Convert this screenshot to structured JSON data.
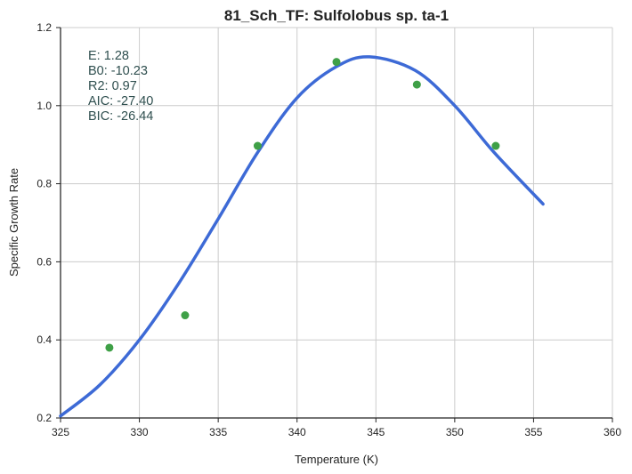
{
  "chart_data": {
    "type": "scatter",
    "title": "81_Sch_TF: Sulfolobus sp. ta-1",
    "xlabel": "Temperature (K)",
    "ylabel": "Specific Growth Rate",
    "xlim": [
      325,
      360
    ],
    "ylim": [
      0.2,
      1.2
    ],
    "xticks": [
      325,
      330,
      335,
      340,
      345,
      350,
      355,
      360
    ],
    "yticks": [
      0.2,
      0.4,
      0.6,
      0.8,
      1.0,
      1.2
    ],
    "xtick_labels": [
      "325",
      "330",
      "335",
      "340",
      "345",
      "350",
      "355",
      "360"
    ],
    "ytick_labels": [
      "0.2",
      "0.4",
      "0.6",
      "0.8",
      "1.0",
      "1.2"
    ],
    "grid": true,
    "series": [
      {
        "kind": "scatter",
        "color": "#3fa047",
        "x": [
          328.1,
          332.9,
          337.5,
          342.5,
          347.6,
          352.6
        ],
        "y": [
          0.38,
          0.463,
          0.897,
          1.112,
          1.054,
          0.897
        ]
      },
      {
        "kind": "line",
        "color": "#3d6ad6",
        "x": [
          325.0,
          327.5,
          330.0,
          332.5,
          335.0,
          337.5,
          340.0,
          342.5,
          344.6,
          347.5,
          350.0,
          352.5,
          355.6
        ],
        "y": [
          0.205,
          0.285,
          0.4,
          0.545,
          0.71,
          0.88,
          1.02,
          1.1,
          1.125,
          1.09,
          1.0,
          0.88,
          0.748
        ]
      }
    ],
    "annotations": [
      "E:  1.28",
      "B0:  -10.23",
      "R2:  0.97",
      "AIC: -27.40",
      "BIC: -26.44"
    ]
  }
}
